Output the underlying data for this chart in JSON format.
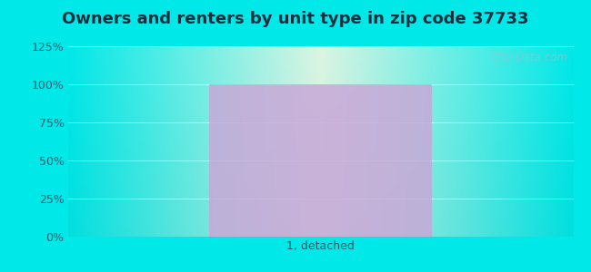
{
  "title": "Owners and renters by unit type in zip code 37733",
  "categories": [
    "1, detached"
  ],
  "values": [
    100
  ],
  "bar_color": "#c8a8d8",
  "bar_alpha": 0.85,
  "ylim": [
    0,
    125
  ],
  "yticks": [
    0,
    25,
    50,
    75,
    100,
    125
  ],
  "ytick_labels": [
    "0%",
    "25%",
    "50%",
    "75%",
    "100%",
    "125%"
  ],
  "title_fontsize": 13,
  "tick_fontsize": 9,
  "bg_outer_color": "#00e8e8",
  "watermark_text": "City-Data.com",
  "watermark_color": "#a8bfc8",
  "watermark_alpha": 0.55,
  "title_color": "#1a3040",
  "tick_color": "#2a5a6a",
  "grid_color": "#d0e8d8"
}
